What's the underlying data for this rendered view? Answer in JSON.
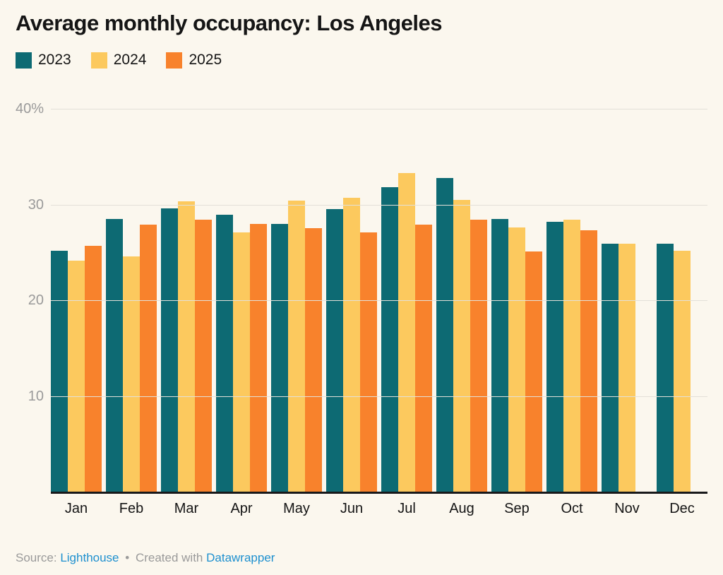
{
  "title": "Average monthly occupancy: Los Angeles",
  "chart_data": {
    "type": "bar",
    "title": "Average monthly occupancy: Los Angeles",
    "categories": [
      "Jan",
      "Feb",
      "Mar",
      "Apr",
      "May",
      "Jun",
      "Jul",
      "Aug",
      "Sep",
      "Oct",
      "Nov",
      "Dec"
    ],
    "series": [
      {
        "name": "2023",
        "color": "#0d6a73",
        "values": [
          25.2,
          28.5,
          29.6,
          28.9,
          28.0,
          29.5,
          31.8,
          32.8,
          28.5,
          28.2,
          25.9,
          25.9
        ]
      },
      {
        "name": "2024",
        "color": "#fcc95e",
        "values": [
          24.1,
          24.6,
          30.3,
          27.1,
          30.4,
          30.7,
          33.3,
          30.5,
          27.6,
          28.4,
          25.9,
          25.2
        ]
      },
      {
        "name": "2025",
        "color": "#f8822c",
        "values": [
          25.7,
          27.9,
          28.4,
          28.0,
          27.5,
          27.1,
          27.9,
          28.4,
          25.1,
          27.3,
          null,
          null
        ]
      }
    ],
    "xlabel": "",
    "ylabel": "",
    "ylim": [
      0,
      40
    ],
    "y_ticks": [
      {
        "value": 40,
        "label": "40%"
      },
      {
        "value": 30,
        "label": "30"
      },
      {
        "value": 20,
        "label": "20"
      },
      {
        "value": 10,
        "label": "10"
      }
    ],
    "grid": true,
    "legend_position": "top"
  },
  "footer": {
    "source_label": "Source:",
    "source_link": "Lighthouse",
    "separator": "•",
    "created_with_label": "Created with",
    "created_with_link": "Datawrapper"
  },
  "colors": {
    "background": "#fbf7ee",
    "text": "#151515",
    "axis_text": "#9a9a9a",
    "gridline": "#e3e0d8",
    "baseline": "#18191a",
    "link": "#1e90cf"
  }
}
